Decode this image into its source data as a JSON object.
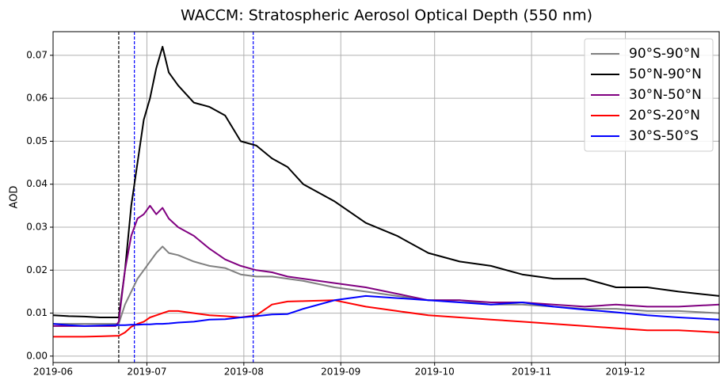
{
  "chart_data": {
    "type": "line",
    "title": "WACCM: Stratospheric Aerosol Optical Depth (550 nm)",
    "y_label": "AOD",
    "x": [
      0,
      5,
      10,
      15,
      20,
      21,
      23,
      25,
      27,
      29,
      31,
      33,
      35,
      37,
      40,
      45,
      50,
      55,
      60,
      65,
      70,
      75,
      80,
      90,
      100,
      110,
      120,
      130,
      140,
      150,
      160,
      170,
      180,
      190,
      200,
      213
    ],
    "series": [
      {
        "name": "90°S-90°N",
        "color": "#808080",
        "values": [
          0.0075,
          0.0075,
          0.0075,
          0.0075,
          0.0075,
          0.0075,
          0.012,
          0.015,
          0.018,
          0.02,
          0.022,
          0.024,
          0.0255,
          0.024,
          0.0235,
          0.022,
          0.021,
          0.0205,
          0.019,
          0.0185,
          0.0185,
          0.018,
          0.0175,
          0.016,
          0.015,
          0.014,
          0.013,
          0.013,
          0.012,
          0.012,
          0.0115,
          0.011,
          0.011,
          0.0105,
          0.0105,
          0.01
        ]
      },
      {
        "name": "50°N-90°N",
        "color": "#000000",
        "values": [
          0.0095,
          0.0093,
          0.0092,
          0.009,
          0.009,
          0.009,
          0.02,
          0.035,
          0.045,
          0.055,
          0.06,
          0.067,
          0.072,
          0.066,
          0.063,
          0.059,
          0.058,
          0.056,
          0.05,
          0.049,
          0.046,
          0.044,
          0.04,
          0.036,
          0.031,
          0.028,
          0.024,
          0.022,
          0.021,
          0.019,
          0.018,
          0.018,
          0.016,
          0.016,
          0.015,
          0.014
        ]
      },
      {
        "name": "30°N-50°N",
        "color": "#800080",
        "values": [
          0.007,
          0.007,
          0.007,
          0.007,
          0.007,
          0.008,
          0.02,
          0.028,
          0.032,
          0.033,
          0.035,
          0.033,
          0.0345,
          0.032,
          0.03,
          0.028,
          0.025,
          0.0225,
          0.021,
          0.02,
          0.0195,
          0.0185,
          0.018,
          0.017,
          0.016,
          0.0145,
          0.013,
          0.013,
          0.0125,
          0.0125,
          0.012,
          0.0115,
          0.012,
          0.0115,
          0.0115,
          0.012
        ]
      },
      {
        "name": "20°S-20°N",
        "color": "#ff0000",
        "values": [
          0.0045,
          0.0045,
          0.0045,
          0.0046,
          0.0047,
          0.0047,
          0.0055,
          0.0068,
          0.0075,
          0.008,
          0.009,
          0.0095,
          0.01,
          0.0105,
          0.0105,
          0.01,
          0.0095,
          0.0093,
          0.009,
          0.0095,
          0.012,
          0.0127,
          0.0128,
          0.013,
          0.0115,
          0.0105,
          0.0095,
          0.009,
          0.0085,
          0.008,
          0.0075,
          0.007,
          0.0065,
          0.006,
          0.006,
          0.0055
        ]
      },
      {
        "name": "30°S-50°S",
        "color": "#0000ff",
        "values": [
          0.0075,
          0.0072,
          0.007,
          0.0071,
          0.0072,
          0.0072,
          0.0072,
          0.0073,
          0.0073,
          0.0074,
          0.0074,
          0.0075,
          0.0075,
          0.0076,
          0.0078,
          0.008,
          0.0085,
          0.0086,
          0.009,
          0.0093,
          0.0097,
          0.0098,
          0.011,
          0.013,
          0.014,
          0.0135,
          0.013,
          0.0125,
          0.012,
          0.0125,
          0.0115,
          0.0108,
          0.0102,
          0.0095,
          0.009,
          0.0085
        ]
      }
    ],
    "vlines": [
      {
        "x": 21,
        "color": "#000000"
      },
      {
        "x": 26,
        "color": "#0000ff"
      },
      {
        "x": 64,
        "color": "#0000ff"
      }
    ],
    "xlim": [
      0,
      213
    ],
    "xticks": [
      {
        "value": 0,
        "label": "2019-06"
      },
      {
        "value": 30,
        "label": "2019-07"
      },
      {
        "value": 61,
        "label": "2019-08"
      },
      {
        "value": 92,
        "label": "2019-09"
      },
      {
        "value": 122,
        "label": "2019-10"
      },
      {
        "value": 153,
        "label": "2019-11"
      },
      {
        "value": 183,
        "label": "2019-12"
      }
    ],
    "ylim": [
      -0.0015,
      0.0755
    ],
    "yticks": [
      {
        "value": 0,
        "label": "0.00"
      },
      {
        "value": 0.01,
        "label": "0.01"
      },
      {
        "value": 0.02,
        "label": "0.02"
      },
      {
        "value": 0.03,
        "label": "0.03"
      },
      {
        "value": 0.04,
        "label": "0.04"
      },
      {
        "value": 0.05,
        "label": "0.05"
      },
      {
        "value": 0.06,
        "label": "0.06"
      },
      {
        "value": 0.07,
        "label": "0.07"
      }
    ],
    "grid": true,
    "legend": "upper right"
  }
}
